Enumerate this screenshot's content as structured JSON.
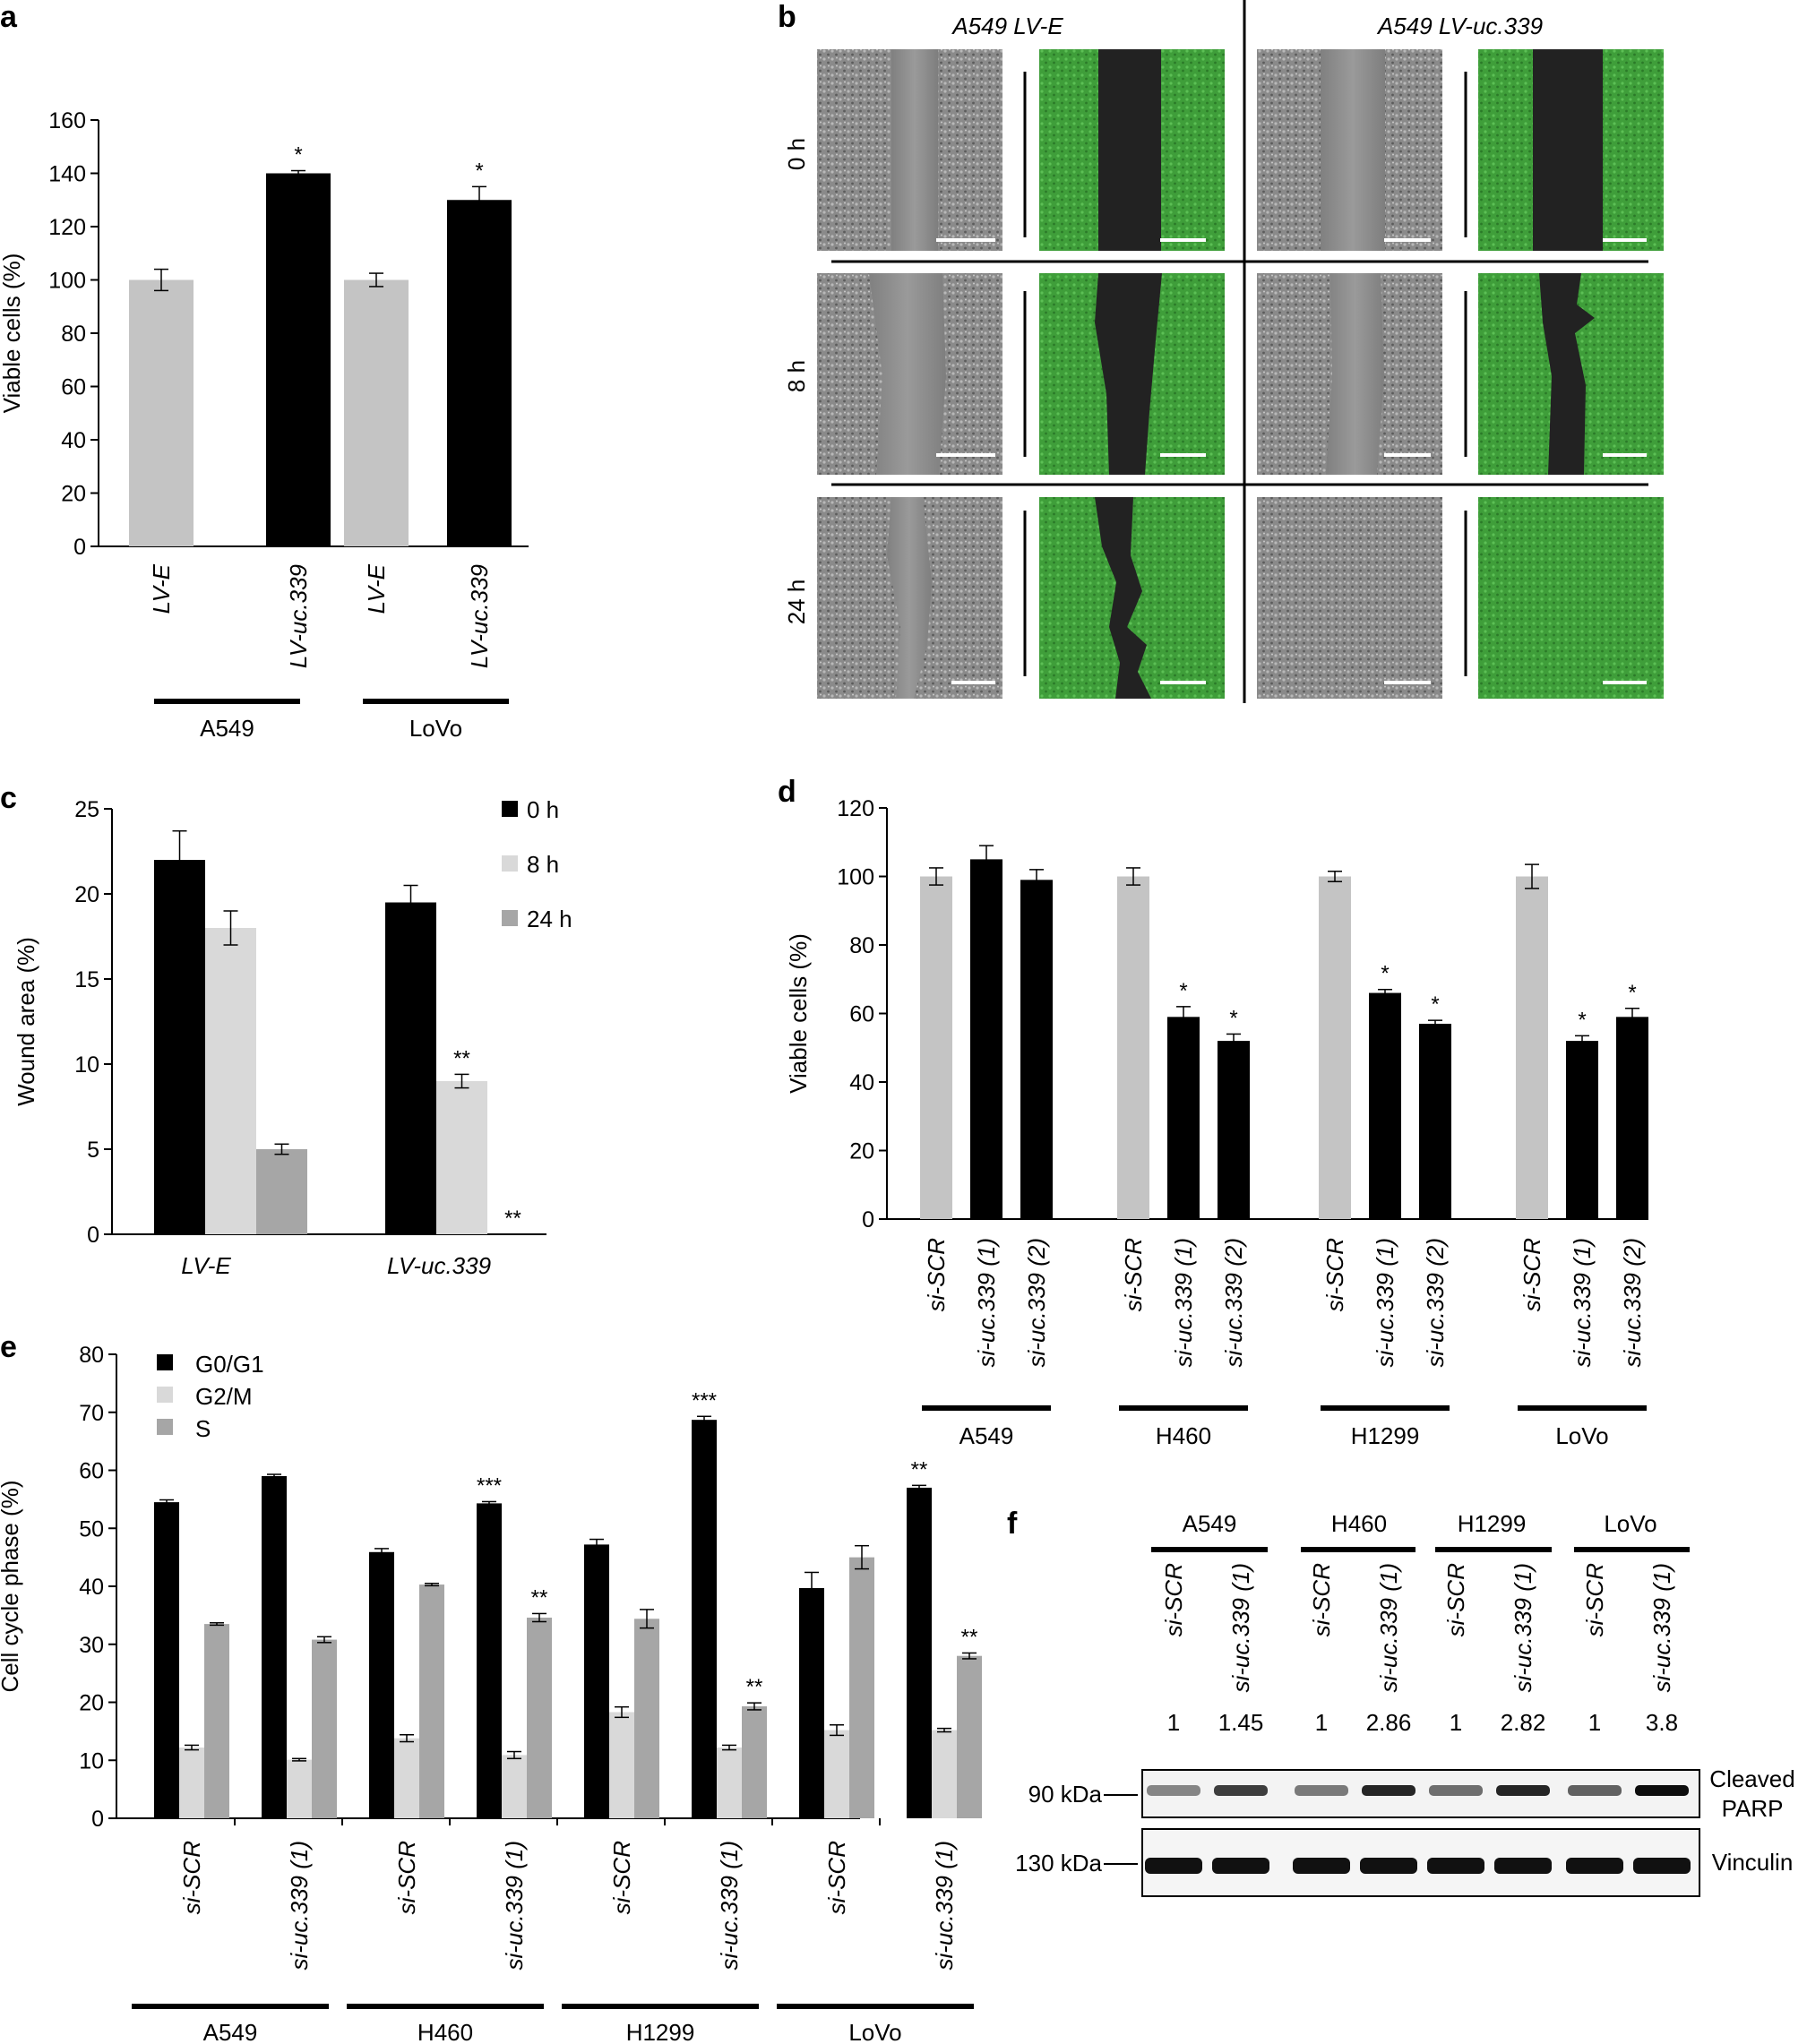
{
  "colors": {
    "black": "#000000",
    "light": "#c4c4c4",
    "lighter": "#d9d9d9",
    "mid": "#a6a6a6",
    "green": "#3fa43a"
  },
  "panel_labels": [
    "a",
    "b",
    "c",
    "d",
    "e",
    "f"
  ],
  "chart_data": [
    {
      "id": "a",
      "type": "bar",
      "ylabel": "Viable cells (%)",
      "ylim": [
        0,
        160
      ],
      "yticks": [
        0,
        20,
        40,
        60,
        80,
        100,
        120,
        140,
        160
      ],
      "categories": [
        "LV-E",
        "LV-uc.339",
        "LV-E",
        "LV-uc.339"
      ],
      "values": [
        100,
        140,
        100,
        130
      ],
      "errors": [
        4,
        1,
        2.5,
        5
      ],
      "bar_colors": [
        "light",
        "black",
        "light",
        "black"
      ],
      "significance": [
        "",
        "*",
        "",
        "*"
      ],
      "groups": [
        "A549",
        "LoVo"
      ]
    },
    {
      "id": "c",
      "type": "bar",
      "ylabel": "Wound area (%)",
      "ylim": [
        0,
        25
      ],
      "yticks": [
        0,
        5,
        10,
        15,
        20,
        25
      ],
      "categories": [
        "LV-E",
        "LV-uc.339"
      ],
      "series": [
        {
          "name": "0 h",
          "color": "black",
          "values": [
            22,
            19.5
          ],
          "errors": [
            1.7,
            1
          ],
          "significance": [
            "",
            ""
          ]
        },
        {
          "name": "8 h",
          "color": "lighter",
          "values": [
            18,
            9
          ],
          "errors": [
            1,
            0.4
          ],
          "significance": [
            "",
            "**"
          ]
        },
        {
          "name": "24 h",
          "color": "mid",
          "values": [
            5,
            0
          ],
          "errors": [
            0.3,
            0
          ],
          "significance": [
            "",
            "**"
          ]
        }
      ],
      "legend": "top-right"
    },
    {
      "id": "d",
      "type": "bar",
      "ylabel": "Viable cells (%)",
      "ylim": [
        0,
        120
      ],
      "yticks": [
        0,
        20,
        40,
        60,
        80,
        100,
        120
      ],
      "groups": [
        {
          "name": "A549",
          "categories": [
            "si-SCR",
            "si-uc.339 (1)",
            "si-uc.339 (2)"
          ],
          "values": [
            100,
            105,
            99
          ],
          "errors": [
            2.5,
            4,
            3
          ],
          "significance": [
            "",
            "",
            ""
          ]
        },
        {
          "name": "H460",
          "categories": [
            "si-SCR",
            "si-uc.339 (1)",
            "si-uc.339 (2)"
          ],
          "values": [
            100,
            59,
            52
          ],
          "errors": [
            2.5,
            3,
            2
          ],
          "significance": [
            "",
            "*",
            "*"
          ]
        },
        {
          "name": "H1299",
          "categories": [
            "si-SCR",
            "si-uc.339 (1)",
            "si-uc.339 (2)"
          ],
          "values": [
            100,
            66,
            57
          ],
          "errors": [
            1.5,
            1,
            1
          ],
          "significance": [
            "",
            "*",
            "*"
          ]
        },
        {
          "name": "LoVo",
          "categories": [
            "si-SCR",
            "si-uc.339 (1)",
            "si-uc.339 (2)"
          ],
          "values": [
            100,
            52,
            59
          ],
          "errors": [
            3.5,
            1.5,
            2.5
          ],
          "significance": [
            "",
            "*",
            "*"
          ]
        }
      ]
    },
    {
      "id": "e",
      "type": "bar",
      "ylabel": "Cell cycle phase (%)",
      "ylim": [
        0,
        80
      ],
      "yticks": [
        0,
        10,
        20,
        30,
        40,
        50,
        60,
        70,
        80
      ],
      "legend": "top-left",
      "series_names": [
        "G0/G1",
        "G2/M",
        "S"
      ],
      "series_colors": [
        "black",
        "lighter",
        "mid"
      ],
      "groups": [
        {
          "name": "A549",
          "conditions": [
            {
              "label": "si-SCR",
              "values": [
                54.5,
                12.2,
                33.5
              ],
              "errors": [
                0.4,
                0.4,
                0.2
              ],
              "significance": [
                "",
                "",
                ""
              ]
            },
            {
              "label": "si-uc.339 (1)",
              "values": [
                59,
                10.1,
                30.8
              ],
              "errors": [
                0.3,
                0.2,
                0.5
              ],
              "significance": [
                "",
                "",
                ""
              ]
            }
          ]
        },
        {
          "name": "H460",
          "conditions": [
            {
              "label": "si-SCR",
              "values": [
                45.9,
                13.8,
                40.3
              ],
              "errors": [
                0.6,
                0.6,
                0.2
              ],
              "significance": [
                "",
                "",
                ""
              ]
            },
            {
              "label": "si-uc.339 (1)",
              "values": [
                54.3,
                10.9,
                34.6
              ],
              "errors": [
                0.3,
                0.6,
                0.7
              ],
              "significance": [
                "***",
                "",
                "**"
              ]
            }
          ]
        },
        {
          "name": "H1299",
          "conditions": [
            {
              "label": "si-SCR",
              "values": [
                47.2,
                18.3,
                34.4
              ],
              "errors": [
                0.9,
                0.9,
                1.6
              ],
              "significance": [
                "",
                "",
                ""
              ]
            },
            {
              "label": "si-uc.339 (1)",
              "values": [
                68.7,
                12.2,
                19.3
              ],
              "errors": [
                0.6,
                0.4,
                0.6
              ],
              "significance": [
                "***",
                "",
                "**"
              ]
            }
          ]
        },
        {
          "name": "LoVo",
          "conditions": [
            {
              "label": "si-SCR",
              "values": [
                39.7,
                15.2,
                45
              ],
              "errors": [
                2.7,
                0.9,
                2
              ],
              "significance": [
                "",
                "",
                ""
              ]
            },
            {
              "label": "si-uc.339 (1)",
              "values": [
                57,
                15.2,
                28
              ],
              "errors": [
                0.4,
                0.3,
                0.5
              ],
              "significance": [
                "**",
                "",
                "**"
              ]
            }
          ]
        }
      ]
    }
  ],
  "panel_b": {
    "column_headers": [
      "A549 LV-E",
      "A549 LV-uc.339"
    ],
    "row_labels": [
      "0 h",
      "8 h",
      "24 h"
    ]
  },
  "panel_f": {
    "groups": [
      "A549",
      "H460",
      "H1299",
      "LoVo"
    ],
    "lanes": [
      "si-SCR",
      "si-uc.339 (1)",
      "si-SCR",
      "si-uc.339 (1)",
      "si-SCR",
      "si-uc.339 (1)",
      "si-SCR",
      "si-uc.339 (1)"
    ],
    "quantification": [
      "1",
      "1.45",
      "1",
      "2.86",
      "1",
      "2.82",
      "1",
      "3.8"
    ],
    "blots": [
      {
        "size": "90 kDa",
        "name": "Cleaved PARP",
        "name_lines": [
          "Cleaved",
          "PARP"
        ]
      },
      {
        "size": "130 kDa",
        "name": "Vinculin",
        "name_lines": [
          "Vinculin"
        ]
      }
    ]
  }
}
